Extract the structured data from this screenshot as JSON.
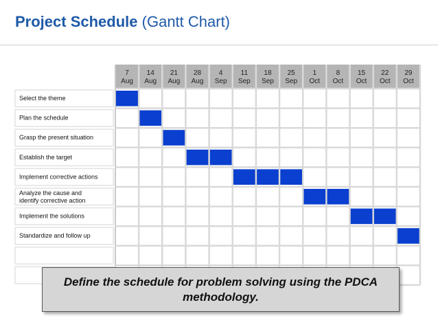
{
  "header": {
    "title_bold": "Project Schedule",
    "title_light": "(Gantt Chart)"
  },
  "colors": {
    "title": "#1e5aa8",
    "task_bar": "#0a3fcf",
    "header_fill": "#b5b5b5",
    "grid_line": "#d9d9d9"
  },
  "chart_data": {
    "type": "gantt",
    "columns": [
      {
        "day": "7",
        "month": "Aug"
      },
      {
        "day": "14",
        "month": "Aug"
      },
      {
        "day": "21",
        "month": "Aug"
      },
      {
        "day": "28",
        "month": "Aug"
      },
      {
        "day": "4",
        "month": "Sep"
      },
      {
        "day": "11",
        "month": "Sep"
      },
      {
        "day": "18",
        "month": "Sep"
      },
      {
        "day": "25",
        "month": "Sep"
      },
      {
        "day": "1",
        "month": "Oct"
      },
      {
        "day": "8",
        "month": "Oct"
      },
      {
        "day": "15",
        "month": "Oct"
      },
      {
        "day": "22",
        "month": "Oct"
      },
      {
        "day": "29",
        "month": "Oct"
      }
    ],
    "tasks": [
      {
        "name": [
          "Select the theme"
        ],
        "start": "7 Aug",
        "end": "14 Aug"
      },
      {
        "name": [
          "Plan the schedule"
        ],
        "start": "14 Aug",
        "end": "21 Aug"
      },
      {
        "name": [
          "Grasp the present situation"
        ],
        "start": "21 Aug",
        "end": "28 Aug"
      },
      {
        "name": [
          "Establish the target"
        ],
        "start": "28 Aug",
        "end": "11 Sep"
      },
      {
        "name": [
          "Implement corrective actions"
        ],
        "start": "11 Sep",
        "end": "1 Oct"
      },
      {
        "name": [
          "Analyze the cause and",
          "identify corrective action"
        ],
        "start": "1 Oct",
        "end": "15 Oct"
      },
      {
        "name": [
          "Implement the solutions"
        ],
        "start": "15 Oct",
        "end": "29 Oct"
      },
      {
        "name": [
          "Standardize and follow up"
        ],
        "start": "29 Oct",
        "end": "5 Nov"
      },
      {
        "name": [
          ""
        ],
        "start": "",
        "end": ""
      },
      {
        "name": [
          ""
        ],
        "start": "",
        "end": ""
      }
    ]
  },
  "callout": {
    "text": "Define the schedule for problem solving using the PDCA methodology."
  }
}
